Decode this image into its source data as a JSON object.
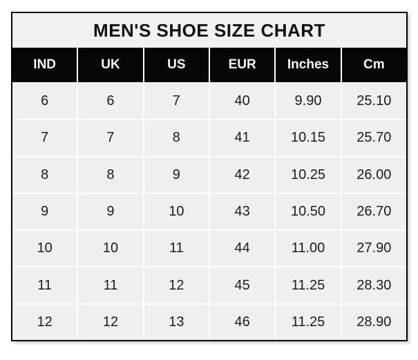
{
  "title": "MEN'S SHOE SIZE CHART",
  "colors": {
    "title_bg": "#f1f1ef",
    "header_bg": "#070707",
    "header_text": "#f7f7f7",
    "cell_bg": "#efefed",
    "cell_text": "#1c1c1c",
    "gridline": "#ffffff",
    "outer_border": "#000000"
  },
  "chart_data": {
    "type": "table",
    "title": "MEN'S SHOE SIZE CHART",
    "columns": [
      "IND",
      "UK",
      "US",
      "EUR",
      "Inches",
      "Cm"
    ],
    "rows": [
      [
        "6",
        "6",
        "7",
        "40",
        "9.90",
        "25.10"
      ],
      [
        "7",
        "7",
        "8",
        "41",
        "10.15",
        "25.70"
      ],
      [
        "8",
        "8",
        "9",
        "42",
        "10.25",
        "26.00"
      ],
      [
        "9",
        "9",
        "10",
        "43",
        "10.50",
        "26.70"
      ],
      [
        "10",
        "10",
        "11",
        "44",
        "11.00",
        "27.90"
      ],
      [
        "11",
        "11",
        "12",
        "45",
        "11.25",
        "28.30"
      ],
      [
        "12",
        "12",
        "13",
        "46",
        "11.25",
        "28.90"
      ]
    ],
    "layout": {
      "grid": "white gridlines between all cells",
      "legend": "none",
      "columns_equal_width": true
    }
  }
}
